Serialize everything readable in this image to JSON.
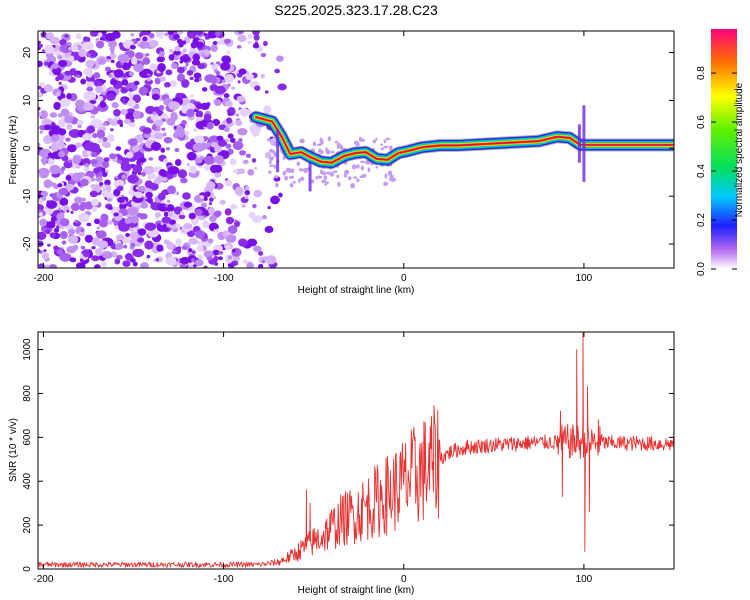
{
  "title": "S225.2025.323.17.28.C23",
  "chart_data": [
    {
      "type": "heatmap",
      "name": "spectrogram",
      "xlabel": "Height of straight line (km)",
      "ylabel": "Frequency (Hz)",
      "xlim": [
        -203,
        150
      ],
      "ylim": [
        -25,
        24.5
      ],
      "xticks": [
        -200,
        -100,
        0,
        100
      ],
      "yticks": [
        20,
        10,
        0,
        -10,
        -20
      ],
      "colorbar": {
        "label": "Normalized spectral amplitude",
        "range": [
          0,
          0.98
        ],
        "ticks": [
          0.0,
          0.2,
          0.4,
          0.6,
          0.8
        ]
      },
      "noise_region_x": [
        -203,
        -75
      ],
      "ridge": [
        {
          "x": -82,
          "y": 6.5
        },
        {
          "x": -73,
          "y": 5.6
        },
        {
          "x": -68,
          "y": 2.6
        },
        {
          "x": -63,
          "y": -1.2
        },
        {
          "x": -57,
          "y": -0.8
        },
        {
          "x": -52,
          "y": -1.8
        },
        {
          "x": -46,
          "y": -2.8
        },
        {
          "x": -40,
          "y": -3.0
        },
        {
          "x": -33,
          "y": -1.6
        },
        {
          "x": -27,
          "y": -1.0
        },
        {
          "x": -21,
          "y": -0.8
        },
        {
          "x": -15,
          "y": -2.2
        },
        {
          "x": -9,
          "y": -2.4
        },
        {
          "x": -3,
          "y": -1.0
        },
        {
          "x": 3,
          "y": -0.5
        },
        {
          "x": 10,
          "y": 0.2
        },
        {
          "x": 20,
          "y": 0.6
        },
        {
          "x": 30,
          "y": 0.6
        },
        {
          "x": 45,
          "y": 0.9
        },
        {
          "x": 60,
          "y": 1.2
        },
        {
          "x": 75,
          "y": 1.5
        },
        {
          "x": 85,
          "y": 2.4
        },
        {
          "x": 92,
          "y": 2.2
        },
        {
          "x": 98,
          "y": 0.7
        },
        {
          "x": 110,
          "y": 0.7
        },
        {
          "x": 130,
          "y": 0.7
        },
        {
          "x": 150,
          "y": 0.7
        }
      ]
    },
    {
      "type": "line",
      "name": "snr",
      "xlabel": "Height of straight line (km)",
      "ylabel": "SNR (10 * v/v)",
      "xlim": [
        -203,
        150
      ],
      "ylim": [
        0,
        1080
      ],
      "xticks": [
        -200,
        -100,
        0,
        100
      ],
      "yticks": [
        0,
        200,
        400,
        600,
        800,
        1000
      ],
      "color": "#e83030",
      "trend": [
        {
          "x": -203,
          "y": 20
        },
        {
          "x": -80,
          "y": 20
        },
        {
          "x": -70,
          "y": 30
        },
        {
          "x": -62,
          "y": 60
        },
        {
          "x": -55,
          "y": 100
        },
        {
          "x": -45,
          "y": 150
        },
        {
          "x": -35,
          "y": 220
        },
        {
          "x": -25,
          "y": 260
        },
        {
          "x": -15,
          "y": 310
        },
        {
          "x": -5,
          "y": 360
        },
        {
          "x": 5,
          "y": 420
        },
        {
          "x": 15,
          "y": 470
        },
        {
          "x": 25,
          "y": 530
        },
        {
          "x": 35,
          "y": 555
        },
        {
          "x": 50,
          "y": 565
        },
        {
          "x": 70,
          "y": 575
        },
        {
          "x": 90,
          "y": 580
        },
        {
          "x": 110,
          "y": 575
        },
        {
          "x": 150,
          "y": 570
        }
      ],
      "spikes": [
        {
          "x": -54,
          "y": 360
        },
        {
          "x": -52,
          "y": 300
        },
        {
          "x": -40,
          "y": 270
        },
        {
          "x": 87,
          "y": 720
        },
        {
          "x": 88,
          "y": 330
        },
        {
          "x": 96,
          "y": 1000
        },
        {
          "x": 99.5,
          "y": 1075
        },
        {
          "x": 100.5,
          "y": 80
        },
        {
          "x": 102,
          "y": 830
        },
        {
          "x": 103,
          "y": 260
        },
        {
          "x": 108,
          "y": 680
        }
      ]
    }
  ]
}
